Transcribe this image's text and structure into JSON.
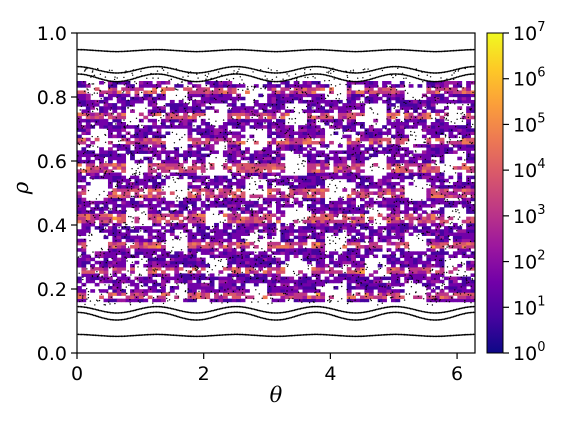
{
  "chart_data": {
    "type": "scatter",
    "subtype": "poincare-section density map with log colorbar",
    "xlabel": "θ",
    "ylabel": "ρ",
    "xlim": [
      0,
      6.283
    ],
    "ylim": [
      0.0,
      1.0
    ],
    "x_ticks": [
      0,
      2,
      4,
      6
    ],
    "x_tick_labels": [
      "0",
      "2",
      "4",
      "6"
    ],
    "y_ticks": [
      0.0,
      0.2,
      0.4,
      0.6,
      0.8,
      1.0
    ],
    "y_tick_labels": [
      "0.0",
      "0.2",
      "0.4",
      "0.6",
      "0.8",
      "1.0"
    ],
    "grid": false,
    "colorbar": {
      "scale": "log",
      "range": [
        1,
        10000000
      ],
      "ticks": [
        {
          "value": 1,
          "base": "10",
          "exp": "0"
        },
        {
          "value": 10,
          "base": "10",
          "exp": "1"
        },
        {
          "value": 100,
          "base": "10",
          "exp": "2"
        },
        {
          "value": 1000,
          "base": "10",
          "exp": "3"
        },
        {
          "value": 10000,
          "base": "10",
          "exp": "4"
        },
        {
          "value": 100000,
          "base": "10",
          "exp": "5"
        },
        {
          "value": 1000000,
          "base": "10",
          "exp": "6"
        },
        {
          "value": 10000000,
          "base": "10",
          "exp": "7"
        }
      ],
      "colormap": [
        "#0d0887",
        "#46039f",
        "#7201a8",
        "#9c179e",
        "#bd3786",
        "#d8576b",
        "#ed7953",
        "#fb9f3a",
        "#fdca26",
        "#f0f921"
      ]
    },
    "invariant_curves": [
      {
        "rho": 0.055,
        "amp": 0.003,
        "period_count": 5
      },
      {
        "rho": 0.115,
        "amp": 0.012,
        "period_count": 5
      },
      {
        "rho": 0.135,
        "amp": 0.01,
        "period_count": 5
      },
      {
        "rho": 0.86,
        "amp": 0.012,
        "period_count": 5
      },
      {
        "rho": 0.885,
        "amp": 0.01,
        "period_count": 5
      },
      {
        "rho": 0.945,
        "amp": 0.003,
        "period_count": 5
      }
    ],
    "density_region": {
      "rho_min": 0.16,
      "rho_max": 0.85
    },
    "high_density_bands_rho": [
      0.18,
      0.26,
      0.34,
      0.42,
      0.5,
      0.58,
      0.66,
      0.74,
      0.82
    ],
    "island_chains_period": 5
  }
}
